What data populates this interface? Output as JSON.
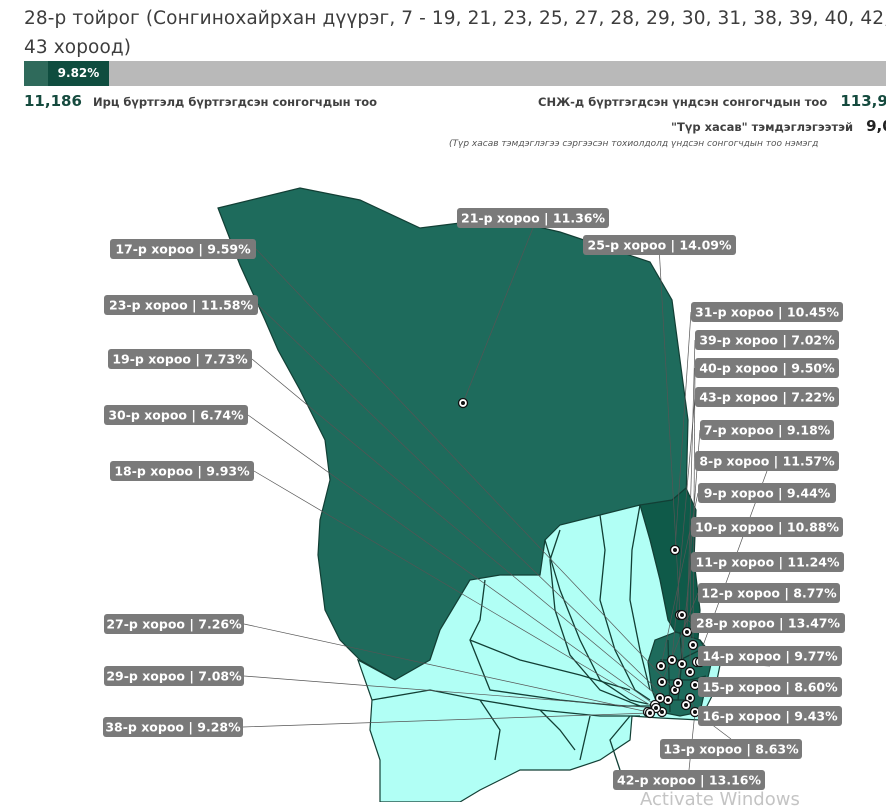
{
  "header": {
    "title": "28-р тойрог (Сонгинохайрхан дүүрэг, 7 - 19, 21, 23, 25, 27, 28, 29, 30, 31, 38, 39, 40, 42, 43 хороод)",
    "progress": {
      "percent_label": "9.82%",
      "value": 9.82
    }
  },
  "stats": {
    "turnout": {
      "value": "11,186",
      "label": "Ирц бүртгэлд бүртгэгдсэн сонгогчдын тоо"
    },
    "registered": {
      "value": "113,9",
      "label": "СНЖ-д бүртгэгдсэн үндсэн сонгогчдын тоо"
    },
    "temporary": {
      "value": "9,0",
      "label": "\"Түр хасав\" тэмдэглэгээтэй"
    },
    "note": "(Түр хасав тэмдэглэгээ сэргээсэн тохиолдолд үндсэн сонгогчдын тоо нэмэгд"
  },
  "colors": {
    "dark_region": "#1e6b5c",
    "darker_region": "#0f5a49",
    "light_region": "#b1fff5",
    "border": "#123f35",
    "label_bg": "#7a7a7a",
    "accent": "#154a3e"
  },
  "labels": [
    {
      "id": "21",
      "text": "21-р хороо | 11.36%"
    },
    {
      "id": "25",
      "text": "25-р хороо | 14.09%"
    },
    {
      "id": "17",
      "text": "17-р хороо | 9.59%"
    },
    {
      "id": "23",
      "text": "23-р хороо | 11.58%"
    },
    {
      "id": "19",
      "text": "19-р хороо | 7.73%"
    },
    {
      "id": "30",
      "text": "30-р хороо | 6.74%"
    },
    {
      "id": "18",
      "text": "18-р хороо | 9.93%"
    },
    {
      "id": "27",
      "text": "27-р хороо | 7.26%"
    },
    {
      "id": "29",
      "text": "29-р хороо | 7.08%"
    },
    {
      "id": "38",
      "text": "38-р хороо | 9.28%"
    },
    {
      "id": "31",
      "text": "31-р хороо | 10.45%"
    },
    {
      "id": "39",
      "text": "39-р хороо | 7.02%"
    },
    {
      "id": "40",
      "text": "40-р хороо | 9.50%"
    },
    {
      "id": "43",
      "text": "43-р хороо | 7.22%"
    },
    {
      "id": "7",
      "text": "7-р хороо | 9.18%"
    },
    {
      "id": "8",
      "text": "8-р хороо | 11.57%"
    },
    {
      "id": "9",
      "text": "9-р хороо | 9.44%"
    },
    {
      "id": "10",
      "text": "10-р хороо | 10.88%"
    },
    {
      "id": "11",
      "text": "11-р хороо | 11.24%"
    },
    {
      "id": "12",
      "text": "12-р хороо | 8.77%"
    },
    {
      "id": "28",
      "text": "28-р хороо | 13.47%"
    },
    {
      "id": "14",
      "text": "14-р хороо | 9.77%"
    },
    {
      "id": "15",
      "text": "15-р хороо | 8.60%"
    },
    {
      "id": "16",
      "text": "16-р хороо | 9.43%"
    },
    {
      "id": "13",
      "text": "13-р хороо | 8.63%"
    },
    {
      "id": "42",
      "text": "42-р хороо | 13.16%"
    }
  ],
  "watermark": "Activate Windows"
}
